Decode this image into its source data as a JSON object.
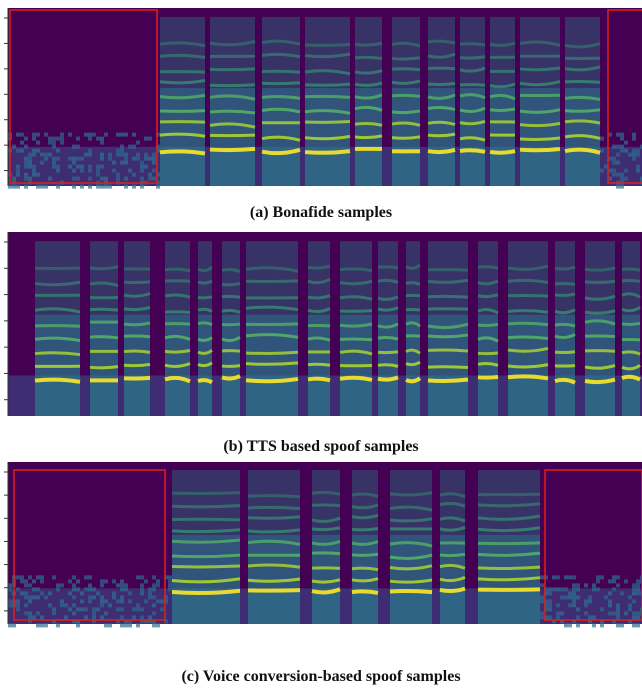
{
  "figure": {
    "panels": [
      {
        "caption": "(a) Bonafide samples"
      },
      {
        "caption": "(b) TTS based spoof samples"
      },
      {
        "caption": "(c) Voice conversion-based spoof samples"
      }
    ]
  }
}
